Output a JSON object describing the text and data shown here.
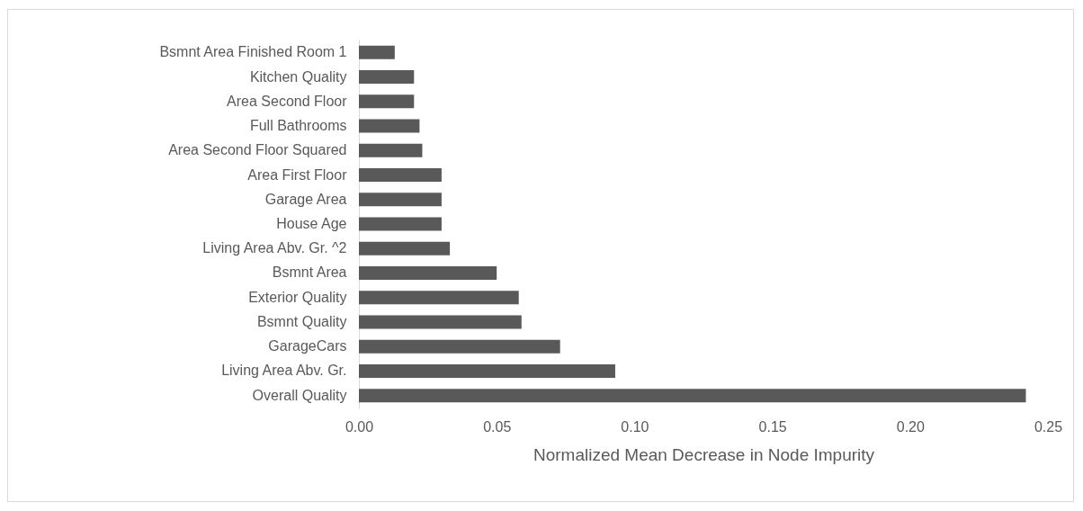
{
  "chart_data": {
    "type": "bar",
    "orientation": "horizontal",
    "xlabel": "Normalized Mean Decrease in Node Impurity",
    "categories": [
      "Bsmnt Area Finished Room 1",
      "Kitchen Quality",
      "Area Second Floor",
      "Full Bathrooms",
      "Area Second Floor Squared",
      "Area First Floor",
      "Garage Area",
      "House Age",
      "Living Area Abv. Gr. ^2",
      "Bsmnt Area",
      "Exterior Quality",
      "Bsmnt Quality",
      "GarageCars",
      "Living Area Abv. Gr.",
      "Overall Quality"
    ],
    "values": [
      0.013,
      0.02,
      0.02,
      0.022,
      0.023,
      0.03,
      0.03,
      0.03,
      0.033,
      0.05,
      0.058,
      0.059,
      0.073,
      0.093,
      0.242
    ],
    "color": "#595959",
    "xlim": [
      0,
      0.25
    ],
    "xticks": [
      {
        "value": 0,
        "label": "0.00"
      },
      {
        "value": 0.05,
        "label": "0.05"
      },
      {
        "value": 0.1,
        "label": "0.10"
      },
      {
        "value": 0.15,
        "label": "0.15"
      },
      {
        "value": 0.2,
        "label": "0.20"
      },
      {
        "value": 0.25,
        "label": "0.25"
      }
    ],
    "grid": false
  }
}
